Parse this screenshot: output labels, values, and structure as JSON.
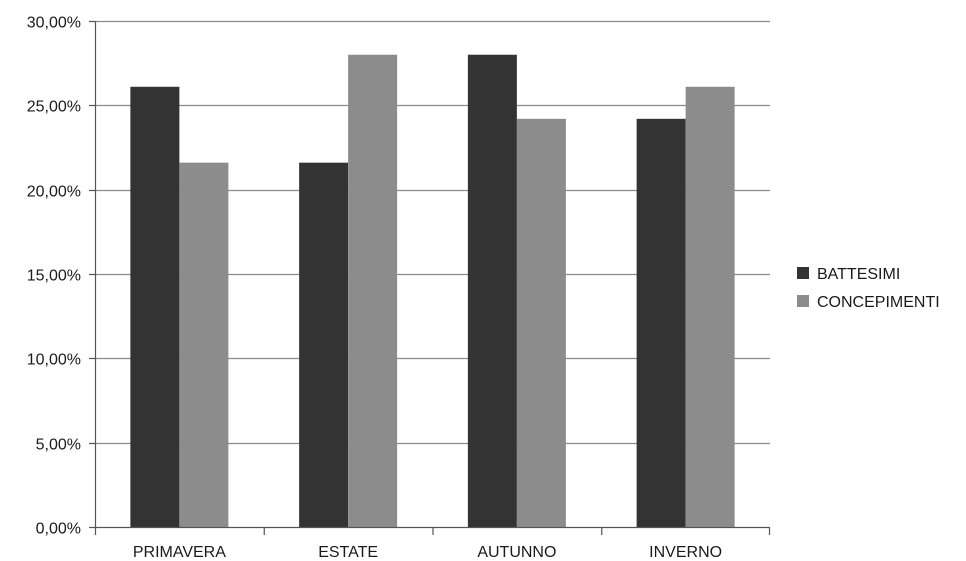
{
  "chart_data": {
    "type": "bar",
    "categories": [
      "PRIMAVERA",
      "ESTATE",
      "AUTUNNO",
      "INVERNO"
    ],
    "series": [
      {
        "name": "BATTESIMI",
        "values": [
          26.1,
          21.6,
          28.0,
          24.2
        ],
        "color": "#333333"
      },
      {
        "name": "CONCEPIMENTI",
        "values": [
          21.6,
          28.0,
          24.2,
          26.1
        ],
        "color": "#8c8c8c"
      }
    ],
    "ylim": [
      0,
      30
    ],
    "yticks": [
      0,
      5,
      10,
      15,
      20,
      25,
      30
    ],
    "ytick_labels": [
      "0,00%",
      "5,00%",
      "10,00%",
      "15,00%",
      "20,00%",
      "25,00%",
      "30,00%"
    ],
    "grid": true,
    "legend_position": "right",
    "title": "",
    "xlabel": "",
    "ylabel": ""
  }
}
